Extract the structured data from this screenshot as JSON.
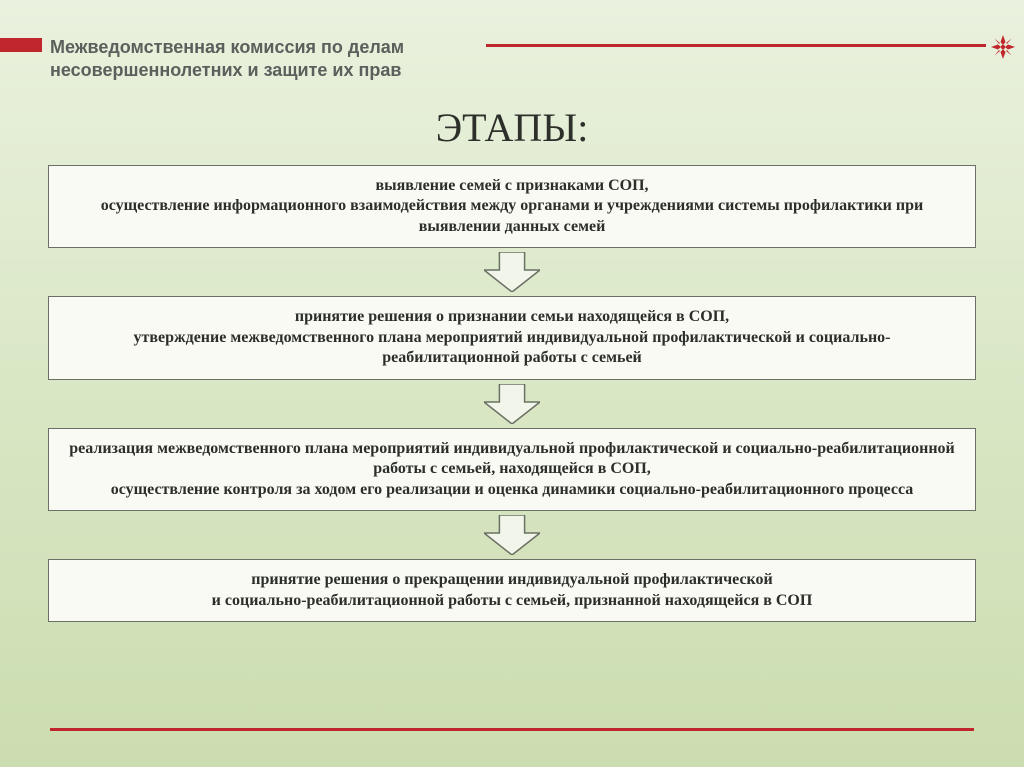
{
  "header": {
    "subtitle": "Межведомственная комиссия по делам несовершеннолетних и защите их прав",
    "title": "ЭТАПЫ:"
  },
  "accent_color": "#c0272d",
  "box_style": {
    "background": "#f8faf3",
    "border_color": "#6b7064",
    "text_color": "#2c2e2a",
    "font_size_pt": 12,
    "font_weight": "bold"
  },
  "arrow_style": {
    "fill": "#f2f5ea",
    "stroke": "#6b7064",
    "width": 56,
    "height": 40
  },
  "stages": [
    {
      "lines": [
        "выявление семей с признаками СОП,",
        "осуществление информационного взаимодействия между органами и учреждениями системы профилактики при выявлении данных семей"
      ]
    },
    {
      "lines": [
        "принятие решения о признании семьи находящейся в  СОП,",
        "утверждение межведомственного плана мероприятий индивидуальной профилактической и социально-реабилитационной работы с семьей"
      ]
    },
    {
      "lines": [
        "реализация межведомственного плана мероприятий индивидуальной профилактической и социально-реабилитационной работы с семьей, находящейся в СОП,",
        "осуществление контроля за ходом его реализации и оценка динамики социально-реабилитационного процесса"
      ]
    },
    {
      "lines": [
        "принятие решения о прекращении индивидуальной профилактической",
        "и социально-реабилитационной работы с семьей, признанной находящейся в СОП"
      ]
    }
  ],
  "ornament_color": "#c0272d"
}
